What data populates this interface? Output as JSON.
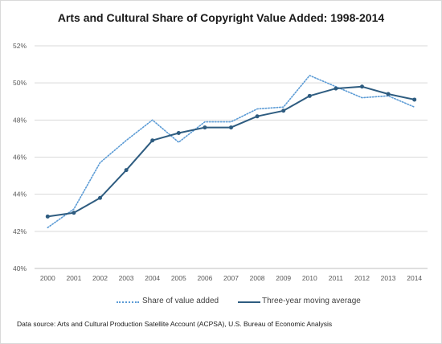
{
  "chart_data": {
    "type": "line",
    "title": "Arts and Cultural Share of Copyright Value Added: 1998-2014",
    "x": [
      "2000",
      "2001",
      "2002",
      "2003",
      "2004",
      "2005",
      "2006",
      "2007",
      "2008",
      "2009",
      "2010",
      "2011",
      "2012",
      "2013",
      "2014"
    ],
    "ylim": [
      40,
      52
    ],
    "yticks": [
      40,
      42,
      44,
      46,
      48,
      50,
      52
    ],
    "ytick_labels": [
      "40%",
      "42%",
      "44%",
      "46%",
      "48%",
      "50%",
      "52%"
    ],
    "grid": "horizontal",
    "legend_position": "bottom",
    "series": [
      {
        "name": "Share of value added",
        "style": "dotted",
        "color": "#5b9bd5",
        "values": [
          42.2,
          43.2,
          45.7,
          46.9,
          48.0,
          46.8,
          47.9,
          47.9,
          48.6,
          48.7,
          50.4,
          49.8,
          49.2,
          49.3,
          48.7
        ]
      },
      {
        "name": "Three-year moving average",
        "style": "solid",
        "color": "#2e5c80",
        "markers": true,
        "values": [
          42.8,
          43.0,
          43.8,
          45.3,
          46.9,
          47.3,
          47.6,
          47.6,
          48.2,
          48.5,
          49.3,
          49.7,
          49.8,
          49.4,
          49.1
        ]
      }
    ]
  },
  "source": "Data source: Arts and Cultural Production Satellite Account (ACPSA), U.S. Bureau of Economic Analysis"
}
